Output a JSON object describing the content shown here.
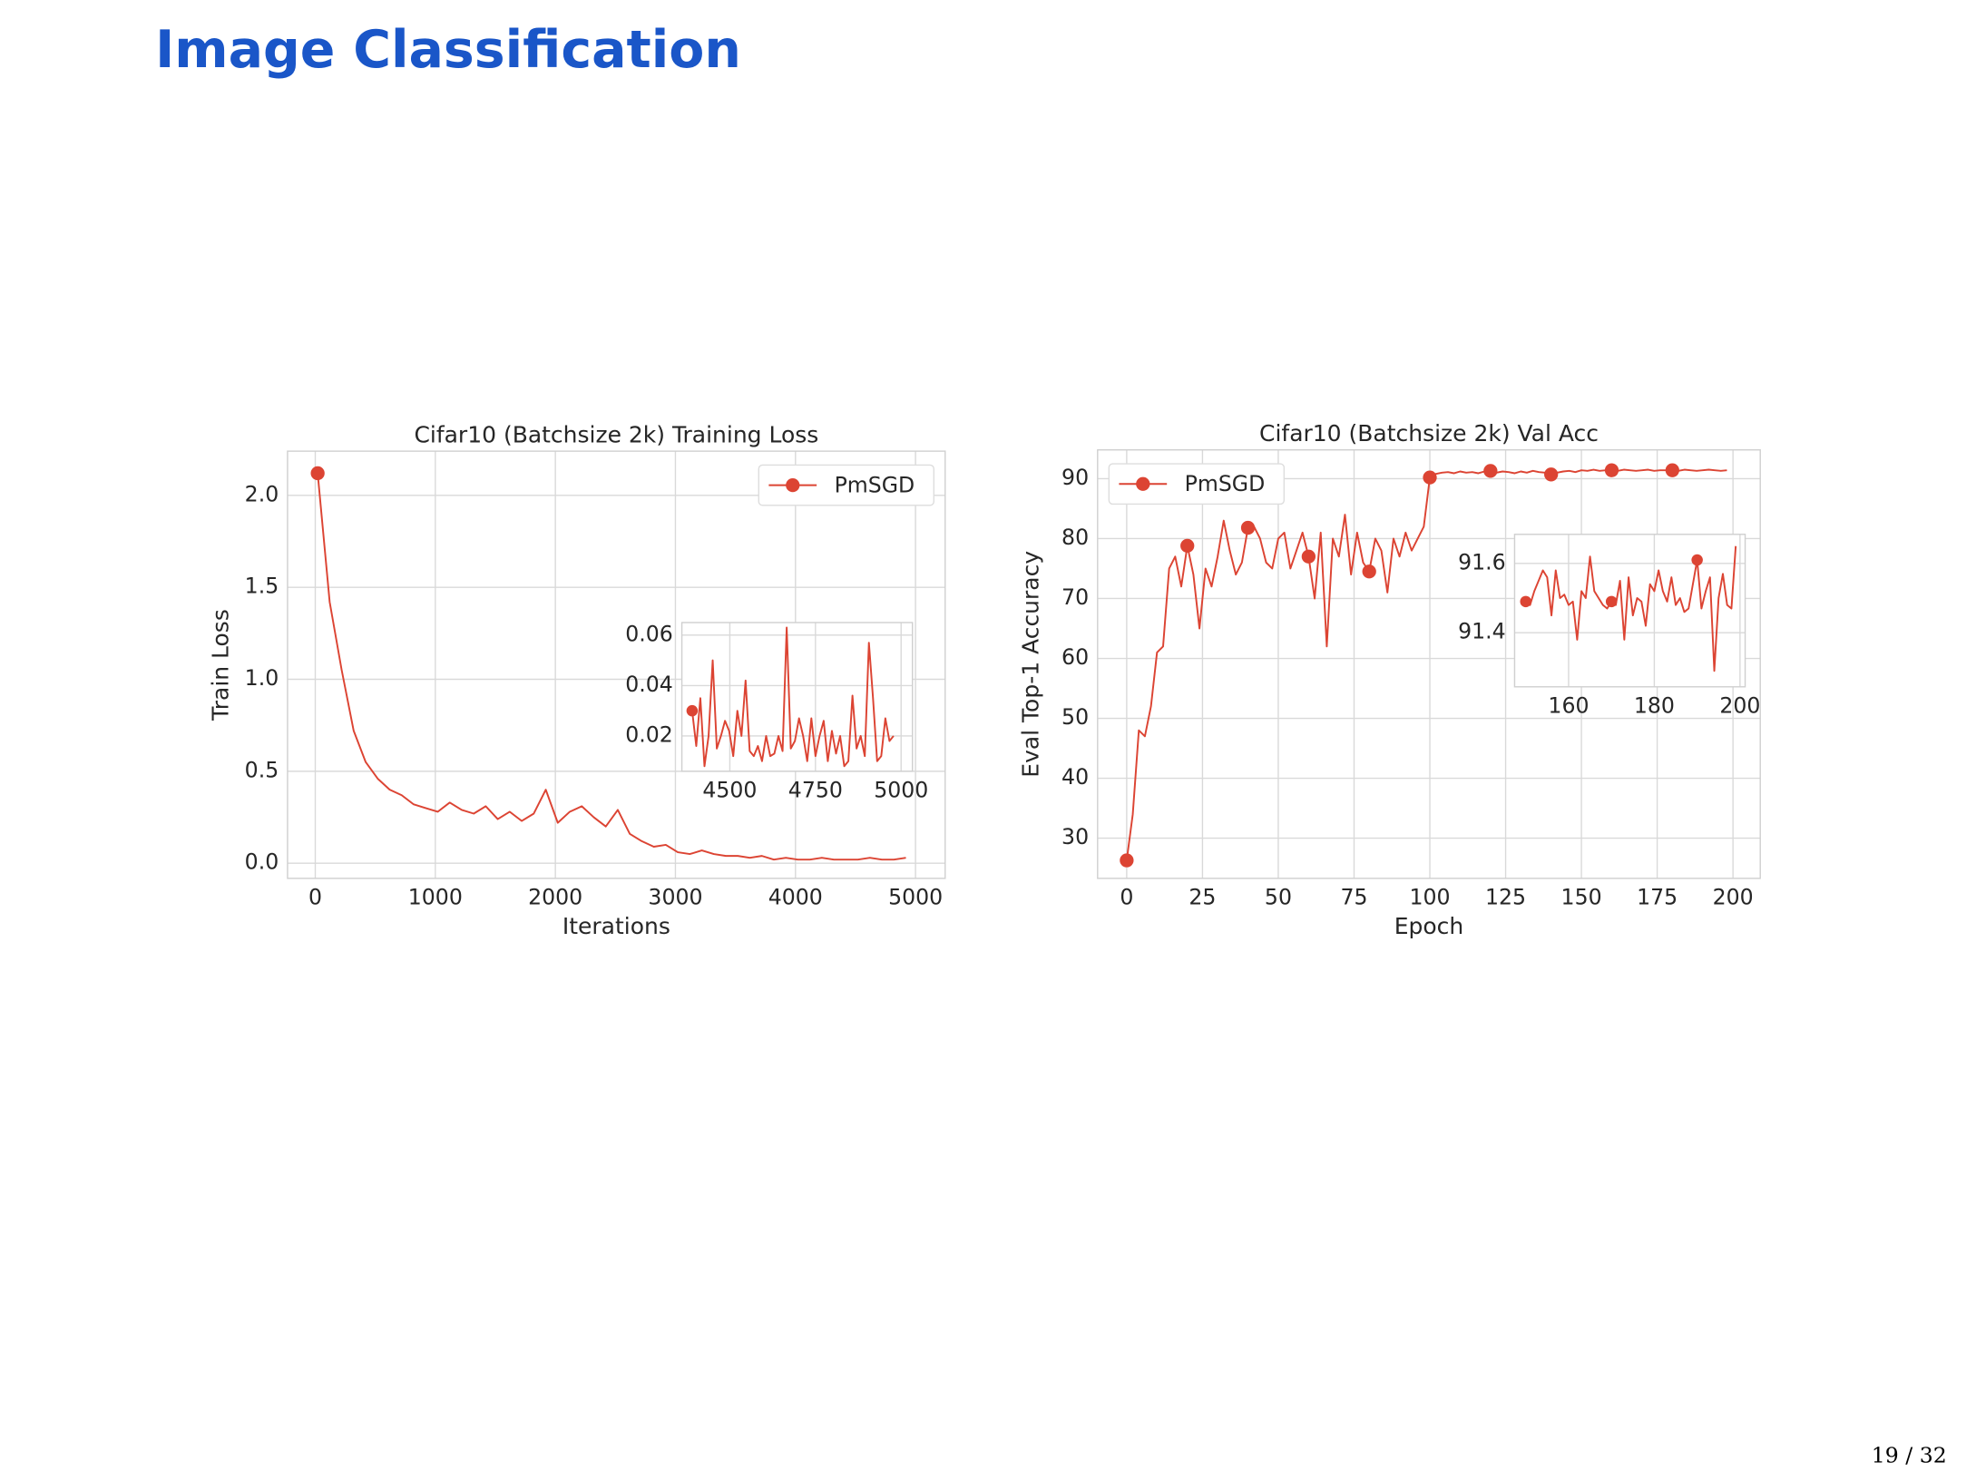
{
  "slide": {
    "title": "Image Classification",
    "page": "19 / 32"
  },
  "chart_data": [
    {
      "type": "line",
      "title": "Cifar10 (Batchsize 2k) Training Loss",
      "xlabel": "Iterations",
      "ylabel": "Train Loss",
      "x": [
        20,
        120,
        220,
        320,
        420,
        520,
        620,
        720,
        820,
        920,
        1020,
        1120,
        1220,
        1320,
        1420,
        1520,
        1620,
        1720,
        1820,
        1920,
        2020,
        2120,
        2220,
        2320,
        2420,
        2520,
        2620,
        2720,
        2820,
        2920,
        3020,
        3120,
        3220,
        3320,
        3420,
        3520,
        3620,
        3720,
        3820,
        3920,
        4020,
        4120,
        4220,
        4320,
        4420,
        4520,
        4620,
        4720,
        4820,
        4920
      ],
      "series": [
        {
          "name": "PmSGD",
          "color": "#dc4433",
          "values": [
            2.12,
            1.42,
            1.05,
            0.72,
            0.55,
            0.46,
            0.4,
            0.37,
            0.32,
            0.3,
            0.28,
            0.33,
            0.29,
            0.27,
            0.31,
            0.24,
            0.28,
            0.23,
            0.27,
            0.4,
            0.22,
            0.28,
            0.31,
            0.25,
            0.2,
            0.29,
            0.16,
            0.12,
            0.09,
            0.1,
            0.06,
            0.05,
            0.07,
            0.05,
            0.04,
            0.04,
            0.03,
            0.04,
            0.02,
            0.03,
            0.02,
            0.02,
            0.03,
            0.02,
            0.02,
            0.02,
            0.03,
            0.02,
            0.02,
            0.03
          ]
        }
      ],
      "marker_every": 100,
      "xlim": [
        -231,
        5247
      ],
      "ylim": [
        -0.082,
        2.24
      ],
      "xticks": [
        0,
        1000,
        2000,
        3000,
        4000,
        5000
      ],
      "yticks": [
        {
          "value": 0,
          "label": "0.0"
        },
        0.5,
        {
          "value": 1,
          "label": "1.0"
        },
        1.5,
        {
          "value": 2,
          "label": "2.0"
        }
      ],
      "grid": true,
      "legend": "upper right"
    },
    {
      "type": "line",
      "x": [
        4390,
        4402,
        4414,
        4426,
        4438,
        4450,
        4462,
        4474,
        4486,
        4498,
        4510,
        4522,
        4534,
        4546,
        4558,
        4570,
        4582,
        4594,
        4606,
        4618,
        4630,
        4642,
        4654,
        4666,
        4678,
        4690,
        4702,
        4714,
        4726,
        4738,
        4750,
        4762,
        4774,
        4786,
        4798,
        4810,
        4822,
        4834,
        4846,
        4858,
        4870,
        4882,
        4894,
        4906,
        4918,
        4930,
        4942,
        4954,
        4966,
        4978
      ],
      "series": [
        {
          "name": "PmSGD",
          "color": "#dc4433",
          "values": [
            0.03,
            0.016,
            0.035,
            0.008,
            0.02,
            0.05,
            0.015,
            0.02,
            0.026,
            0.022,
            0.012,
            0.03,
            0.02,
            0.042,
            0.014,
            0.012,
            0.016,
            0.01,
            0.02,
            0.012,
            0.013,
            0.02,
            0.014,
            0.063,
            0.015,
            0.018,
            0.027,
            0.02,
            0.01,
            0.027,
            0.012,
            0.02,
            0.026,
            0.01,
            0.022,
            0.013,
            0.02,
            0.008,
            0.01,
            0.036,
            0.015,
            0.02,
            0.012,
            0.057,
            0.035,
            0.01,
            0.012,
            0.027,
            0.018,
            0.02
          ]
        }
      ],
      "marker_every": 100,
      "xlim": [
        4360,
        5033
      ],
      "ylim": [
        0.006,
        0.065
      ],
      "xticks": [
        4500,
        4750,
        5000
      ],
      "yticks": [
        0.02,
        0.04,
        0.06
      ],
      "grid": true
    },
    {
      "type": "line",
      "title": "Cifar10 (Batchsize 2k) Val Acc",
      "xlabel": "Epoch",
      "ylabel": "Eval Top-1 Accuracy",
      "x": [
        0,
        2,
        4,
        6,
        8,
        10,
        12,
        14,
        16,
        18,
        20,
        22,
        24,
        26,
        28,
        30,
        32,
        34,
        36,
        38,
        40,
        42,
        44,
        46,
        48,
        50,
        52,
        54,
        56,
        58,
        60,
        62,
        64,
        66,
        68,
        70,
        72,
        74,
        76,
        78,
        80,
        82,
        84,
        86,
        88,
        90,
        92,
        94,
        96,
        98,
        100,
        102,
        104,
        106,
        108,
        110,
        112,
        114,
        116,
        118,
        120,
        122,
        124,
        126,
        128,
        130,
        132,
        134,
        136,
        138,
        140,
        142,
        144,
        146,
        148,
        150,
        152,
        154,
        156,
        158,
        160,
        162,
        164,
        166,
        168,
        170,
        172,
        174,
        176,
        178,
        180,
        182,
        184,
        186,
        188,
        190,
        192,
        194,
        196,
        198
      ],
      "series": [
        {
          "name": "PmSGD",
          "color": "#dc4433",
          "values": [
            26.3,
            34,
            48,
            47,
            52,
            61,
            62,
            75,
            77,
            72,
            78.8,
            74,
            65,
            75,
            72,
            77,
            83,
            78,
            74,
            76,
            81.8,
            82,
            80,
            76,
            75,
            80,
            81,
            75,
            78,
            81,
            77,
            70,
            81,
            62,
            80,
            77,
            84,
            74,
            81,
            76,
            74.5,
            80,
            78,
            71,
            80,
            77,
            81,
            78,
            80,
            82,
            90.2,
            90.8,
            91,
            91.1,
            90.9,
            91.2,
            91,
            91.1,
            90.9,
            91.2,
            91.3,
            91,
            91.2,
            91.1,
            90.9,
            91.2,
            91,
            91.3,
            91.1,
            91.0,
            90.7,
            91.0,
            91.2,
            91.3,
            91.1,
            91.4,
            91.3,
            91.5,
            91.3,
            91.4,
            91.4,
            91.3,
            91.5,
            91.4,
            91.3,
            91.4,
            91.5,
            91.3,
            91.4,
            91.4,
            91.4,
            91.3,
            91.5,
            91.4,
            91.3,
            91.4,
            91.5,
            91.4,
            91.3,
            91.4
          ]
        }
      ],
      "marker_every": 10,
      "xlim": [
        -9.6,
        209
      ],
      "ylim": [
        23.3,
        94.8
      ],
      "xticks": [
        0,
        25,
        50,
        75,
        100,
        125,
        150,
        175,
        200
      ],
      "yticks": [
        30,
        40,
        50,
        60,
        70,
        80,
        90
      ],
      "grid": true,
      "legend": "upper left"
    },
    {
      "type": "line",
      "x": [
        150,
        151,
        152,
        153,
        154,
        155,
        156,
        157,
        158,
        159,
        160,
        161,
        162,
        163,
        164,
        165,
        166,
        167,
        168,
        169,
        170,
        171,
        172,
        173,
        174,
        175,
        176,
        177,
        178,
        179,
        180,
        181,
        182,
        183,
        184,
        185,
        186,
        187,
        188,
        189,
        190,
        191,
        192,
        193,
        194,
        195,
        196,
        197,
        198,
        199
      ],
      "series": [
        {
          "name": "PmSGD",
          "color": "#dc4433",
          "values": [
            91.49,
            91.48,
            91.52,
            91.55,
            91.58,
            91.56,
            91.45,
            91.58,
            91.5,
            91.51,
            91.48,
            91.49,
            91.38,
            91.52,
            91.5,
            91.62,
            91.52,
            91.5,
            91.48,
            91.47,
            91.49,
            91.48,
            91.55,
            91.38,
            91.56,
            91.45,
            91.5,
            91.49,
            91.42,
            91.54,
            91.52,
            91.58,
            91.52,
            91.49,
            91.56,
            91.48,
            91.5,
            91.46,
            91.47,
            91.54,
            91.61,
            91.47,
            91.52,
            91.56,
            91.29,
            91.5,
            91.57,
            91.48,
            91.47,
            91.65
          ]
        }
      ],
      "marker_every": 20,
      "xlim": [
        147.4,
        201.2
      ],
      "ylim": [
        91.244,
        91.684
      ],
      "xticks": [
        160,
        180,
        200
      ],
      "yticks": [
        91.4,
        91.6
      ],
      "grid": true
    }
  ]
}
